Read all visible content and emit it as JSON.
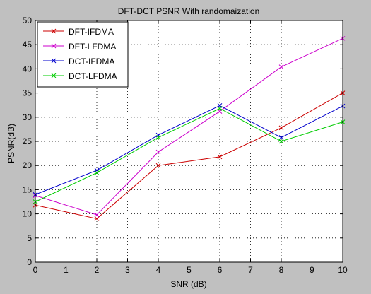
{
  "chart_data": {
    "type": "line",
    "title": "DFT-DCT PSNR With randomaization",
    "xlabel": "SNR (dB)",
    "ylabel": "PSNR(dB)",
    "xlim": [
      0,
      10
    ],
    "ylim": [
      0,
      50
    ],
    "xticks": [
      0,
      1,
      2,
      3,
      4,
      5,
      6,
      7,
      8,
      9,
      10
    ],
    "yticks": [
      0,
      5,
      10,
      15,
      20,
      25,
      30,
      35,
      40,
      45,
      50
    ],
    "grid": true,
    "grid_style": "dotted",
    "legend_position": "top-left",
    "marker": "x",
    "x": [
      0,
      2,
      4,
      6,
      8,
      10
    ],
    "series": [
      {
        "name": "DFT-IFDMA",
        "color": "#cc0000",
        "values": [
          11.8,
          9.0,
          20.0,
          21.8,
          27.8,
          35.0
        ]
      },
      {
        "name": "DFT-LFDMA",
        "color": "#cc00cc",
        "values": [
          13.8,
          9.8,
          22.8,
          31.2,
          40.4,
          46.3
        ]
      },
      {
        "name": "DCT-IFDMA",
        "color": "#0000cc",
        "values": [
          14.0,
          19.0,
          26.3,
          32.4,
          25.8,
          32.3
        ]
      },
      {
        "name": "DCT-LFDMA",
        "color": "#00cc00",
        "values": [
          12.5,
          18.5,
          25.8,
          31.8,
          25.0,
          29.0
        ]
      }
    ]
  }
}
